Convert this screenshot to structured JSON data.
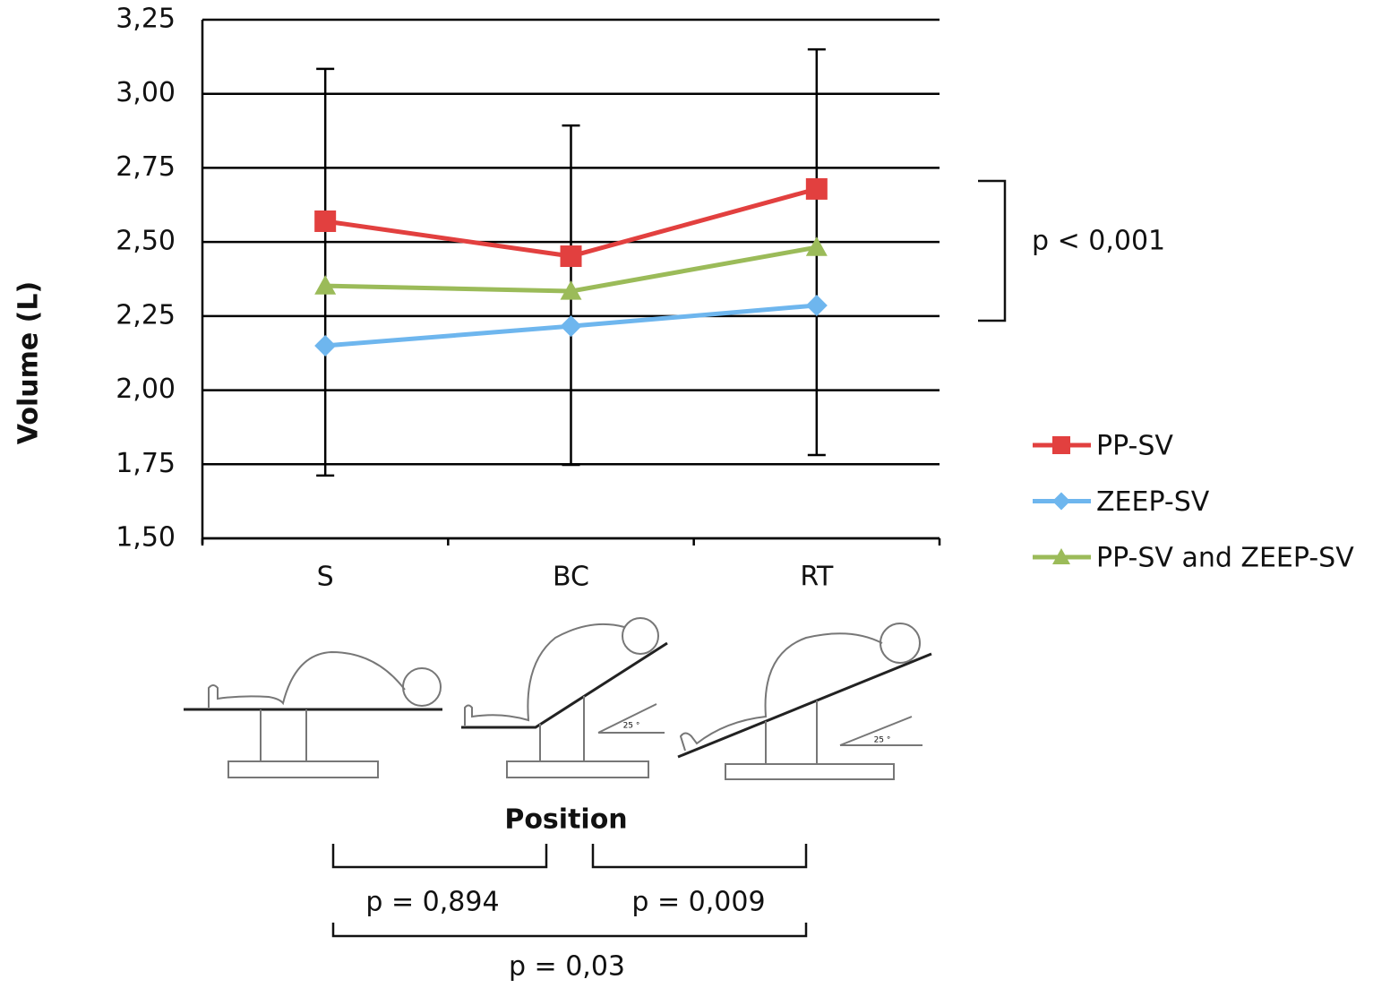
{
  "chart_data": {
    "type": "line",
    "categories": [
      "S",
      "BC",
      "RT"
    ],
    "series": [
      {
        "name": "PP-SV",
        "color": "#e2403f",
        "marker": "square",
        "values": [
          2.57,
          2.452,
          2.679
        ]
      },
      {
        "name": "ZEEP-SV",
        "color": "#6eb6ee",
        "marker": "diamond",
        "values": [
          2.15,
          2.216,
          2.286
        ]
      },
      {
        "name": "PP-SV and ZEEP-SV",
        "color": "#9bbb59",
        "marker": "triangle",
        "values": [
          2.352,
          2.334,
          2.482
        ],
        "error_low": [
          1.712,
          1.748,
          1.781
        ],
        "error_high": [
          3.084,
          2.893,
          3.15
        ]
      }
    ],
    "ylim": [
      1.5,
      3.25
    ],
    "yticks": [
      {
        "value": 1.5,
        "label": "1,50"
      },
      {
        "value": 1.75,
        "label": "1,75"
      },
      {
        "value": 2,
        "label": "2,00"
      },
      {
        "value": 2.25,
        "label": "2,25"
      },
      {
        "value": 2.5,
        "label": "2,50"
      },
      {
        "value": 2.75,
        "label": "2,75"
      },
      {
        "value": 3,
        "label": "3,00"
      },
      {
        "value": 3.25,
        "label": "3,25"
      }
    ],
    "grid": true,
    "legend": "right",
    "xlabel": "Position",
    "ylabel": "Volume (L)",
    "annotations": [
      "p < 0,001",
      "p = 0,894",
      "p = 0,009",
      "p = 0,03"
    ],
    "illustration_labels": [
      "25 °",
      "25 °"
    ]
  }
}
